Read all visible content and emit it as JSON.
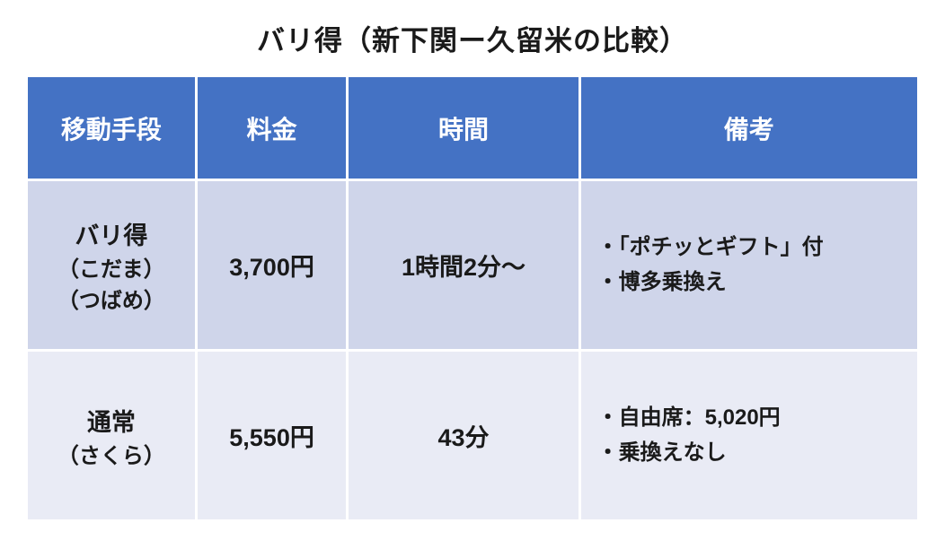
{
  "title": "バリ得（新下関ー久留米の比較）",
  "title_fontsize": 31,
  "header_bg": "#4472c4",
  "header_color": "#ffffff",
  "header_fontsize": 28,
  "row_colors": [
    "#cfd5ea",
    "#e9ebf5"
  ],
  "cell_text_color": "#1a1a1a",
  "cell_fontsize_main": 27,
  "cell_fontsize_sub": 24,
  "note_fontsize": 24,
  "columns": [
    "移動手段",
    "料金",
    "時間",
    "備考"
  ],
  "rows": [
    {
      "means_main": "バリ得",
      "means_sub1": "（こだま）",
      "means_sub2": "（つばめ）",
      "price": "3,700円",
      "time": "1時間2分～",
      "note1": "・「ポチッとギフト」付",
      "note2": "・博多乗換え"
    },
    {
      "means_main": "通常",
      "means_sub1": "（さくら）",
      "means_sub2": "",
      "price": "5,550円",
      "time": "43分",
      "note1": "・自由席：5,020円",
      "note2": "・乗換えなし"
    }
  ]
}
